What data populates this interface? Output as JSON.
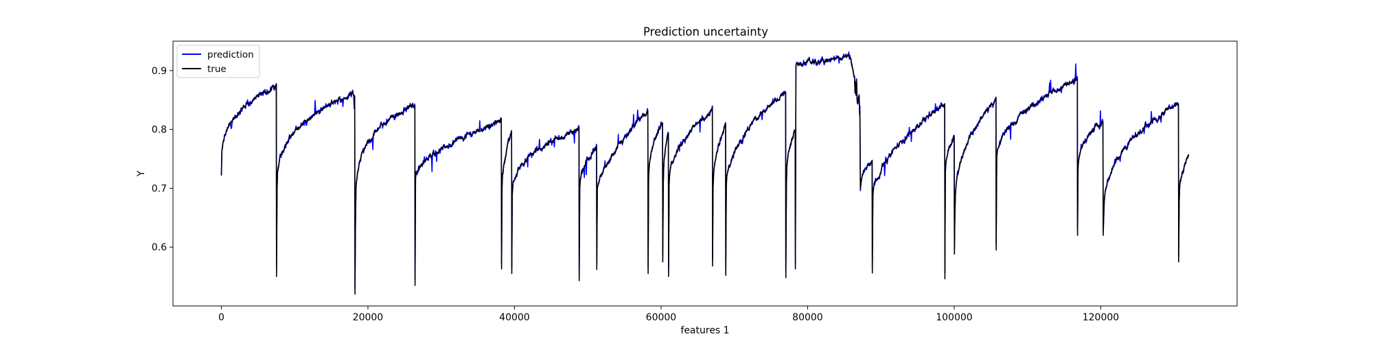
{
  "chart_data": {
    "type": "line",
    "title": "Prediction uncertainty",
    "xlabel": "features 1",
    "ylabel": "Y",
    "xlim": [
      -6600,
      138600
    ],
    "ylim": [
      0.5,
      0.95
    ],
    "xticks": [
      0,
      20000,
      40000,
      60000,
      80000,
      100000,
      120000
    ],
    "yticks": [
      0.6,
      0.7,
      0.8,
      0.9
    ],
    "grid": false,
    "legend_position": "upper-left",
    "segments": [
      {
        "x0": 0,
        "x1": 7500,
        "start": 0.722,
        "end": 0.872,
        "shape": 0.3,
        "dip": 0.55
      },
      {
        "x0": 7600,
        "x1": 18200,
        "start": 0.7,
        "end": 0.862,
        "shape": 0.35,
        "dip": 0.52
      },
      {
        "x0": 18300,
        "x1": 26400,
        "start": 0.64,
        "end": 0.843,
        "shape": 0.25,
        "dip": 0.535
      },
      {
        "x0": 26500,
        "x1": 38200,
        "start": 0.72,
        "end": 0.815,
        "shape": 0.6,
        "dip": 0.563
      },
      {
        "x0": 38300,
        "x1": 39600,
        "start": 0.7,
        "end": 0.795,
        "shape": 0.5,
        "dip": 0.555
      },
      {
        "x0": 39700,
        "x1": 48800,
        "start": 0.69,
        "end": 0.8,
        "shape": 0.4,
        "dip": 0.543
      },
      {
        "x0": 48900,
        "x1": 51200,
        "start": 0.7,
        "end": 0.77,
        "shape": 0.5,
        "dip": 0.562
      },
      {
        "x0": 51300,
        "x1": 58200,
        "start": 0.7,
        "end": 0.83,
        "shape": 0.7,
        "dip": 0.555
      },
      {
        "x0": 58300,
        "x1": 60200,
        "start": 0.72,
        "end": 0.81,
        "shape": 0.5,
        "dip": 0.575
      },
      {
        "x0": 60300,
        "x1": 61000,
        "start": 0.71,
        "end": 0.795,
        "shape": 0.5,
        "dip": 0.55
      },
      {
        "x0": 61100,
        "x1": 67000,
        "start": 0.71,
        "end": 0.833,
        "shape": 0.5,
        "dip": 0.568
      },
      {
        "x0": 67100,
        "x1": 68800,
        "start": 0.7,
        "end": 0.81,
        "shape": 0.5,
        "dip": 0.552
      },
      {
        "x0": 68900,
        "x1": 77000,
        "start": 0.7,
        "end": 0.865,
        "shape": 0.5,
        "dip": 0.548
      },
      {
        "x0": 77100,
        "x1": 78300,
        "start": 0.7,
        "end": 0.8,
        "shape": 0.4,
        "dip": 0.563
      },
      {
        "x0": 78400,
        "x1": 87100,
        "start": 0.91,
        "end": 0.925,
        "shape": 1.0,
        "dip": 0.83,
        "tail": 0.84
      },
      {
        "x0": 87200,
        "x1": 88800,
        "start": 0.7,
        "end": 0.75,
        "shape": 0.5,
        "dip": 0.556
      },
      {
        "x0": 88900,
        "x1": 98700,
        "start": 0.69,
        "end": 0.845,
        "shape": 0.6,
        "dip": 0.546
      },
      {
        "x0": 98800,
        "x1": 100000,
        "start": 0.73,
        "end": 0.79,
        "shape": 0.5,
        "dip": 0.588
      },
      {
        "x0": 100100,
        "x1": 105700,
        "start": 0.66,
        "end": 0.85,
        "shape": 0.4,
        "dip": 0.595
      },
      {
        "x0": 105800,
        "x1": 116800,
        "start": 0.75,
        "end": 0.885,
        "shape": 0.5,
        "dip": 0.62
      },
      {
        "x0": 116900,
        "x1": 120300,
        "start": 0.73,
        "end": 0.815,
        "shape": 0.4,
        "dip": 0.62
      },
      {
        "x0": 120400,
        "x1": 130600,
        "start": 0.65,
        "end": 0.845,
        "shape": 0.4,
        "dip": 0.575
      },
      {
        "x0": 130700,
        "x1": 132000,
        "start": 0.68,
        "end": 0.755,
        "shape": 0.4,
        "dip": 0.562
      }
    ],
    "series": [
      {
        "name": "prediction",
        "color": "#0000ff"
      },
      {
        "name": "true",
        "color": "#000000"
      }
    ]
  }
}
